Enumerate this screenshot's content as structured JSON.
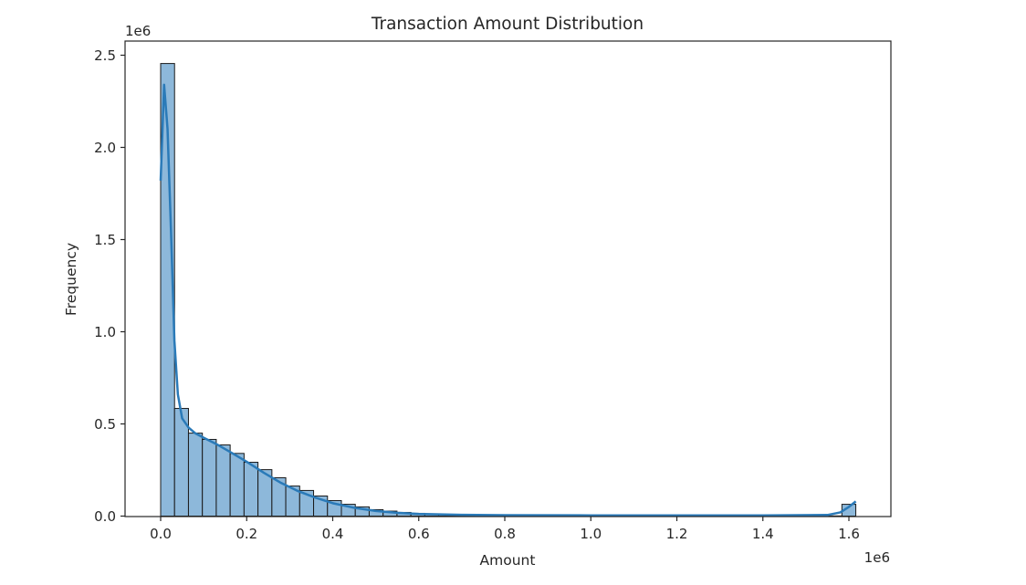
{
  "chart_data": {
    "type": "bar",
    "subtype": "histogram_with_kde",
    "title": "Transaction Amount Distribution",
    "xlabel": "Amount",
    "ylabel": "Frequency",
    "x_offset_label": "1e6",
    "y_offset_label": "1e6",
    "xlim": [
      -0.08,
      1.7
    ],
    "ylim": [
      0,
      2.58
    ],
    "xticks": [
      0.0,
      0.2,
      0.4,
      0.6,
      0.8,
      1.0,
      1.2,
      1.4,
      1.6
    ],
    "xtick_labels": [
      "0.0",
      "0.2",
      "0.4",
      "0.6",
      "0.8",
      "1.0",
      "1.2",
      "1.4",
      "1.6"
    ],
    "yticks": [
      0.0,
      0.5,
      1.0,
      1.5,
      2.0,
      2.5
    ],
    "ytick_labels": [
      "0.0",
      "0.5",
      "1.0",
      "1.5",
      "2.0",
      "2.5"
    ],
    "grid": false,
    "legend": null,
    "bin_start": 0.0,
    "bin_width": 0.03232,
    "bin_count": 50,
    "units_note": "x and y values in units of 1e6",
    "values": [
      2.455,
      0.584,
      0.45,
      0.416,
      0.386,
      0.34,
      0.292,
      0.252,
      0.208,
      0.163,
      0.139,
      0.109,
      0.084,
      0.064,
      0.05,
      0.035,
      0.027,
      0.02,
      0.015,
      0.011,
      0.009,
      0.007,
      0.006,
      0.005,
      0.004,
      0.003,
      0.003,
      0.002,
      0.002,
      0.002,
      0.002,
      0.002,
      0.001,
      0.001,
      0.001,
      0.001,
      0.001,
      0.001,
      0.001,
      0.001,
      0.001,
      0.001,
      0.001,
      0.001,
      0.001,
      0.001,
      0.001,
      0.001,
      0.001,
      0.064
    ],
    "kde": {
      "x": [
        0.0,
        0.008,
        0.016,
        0.024,
        0.032,
        0.04,
        0.05,
        0.065,
        0.08,
        0.1,
        0.13,
        0.16,
        0.2,
        0.24,
        0.28,
        0.32,
        0.36,
        0.4,
        0.45,
        0.5,
        0.55,
        0.6,
        0.7,
        0.8,
        1.0,
        1.2,
        1.4,
        1.55,
        1.58,
        1.6,
        1.616
      ],
      "y": [
        1.82,
        2.34,
        2.1,
        1.55,
        0.95,
        0.66,
        0.53,
        0.48,
        0.45,
        0.425,
        0.39,
        0.35,
        0.295,
        0.235,
        0.18,
        0.135,
        0.1,
        0.07,
        0.045,
        0.028,
        0.018,
        0.012,
        0.007,
        0.005,
        0.004,
        0.004,
        0.004,
        0.006,
        0.02,
        0.05,
        0.08
      ]
    },
    "colors": {
      "bar_fill": "#8db8da",
      "bar_edge": "#1a1a1a",
      "kde_line": "#2a7ab8",
      "axis": "#262626"
    }
  }
}
